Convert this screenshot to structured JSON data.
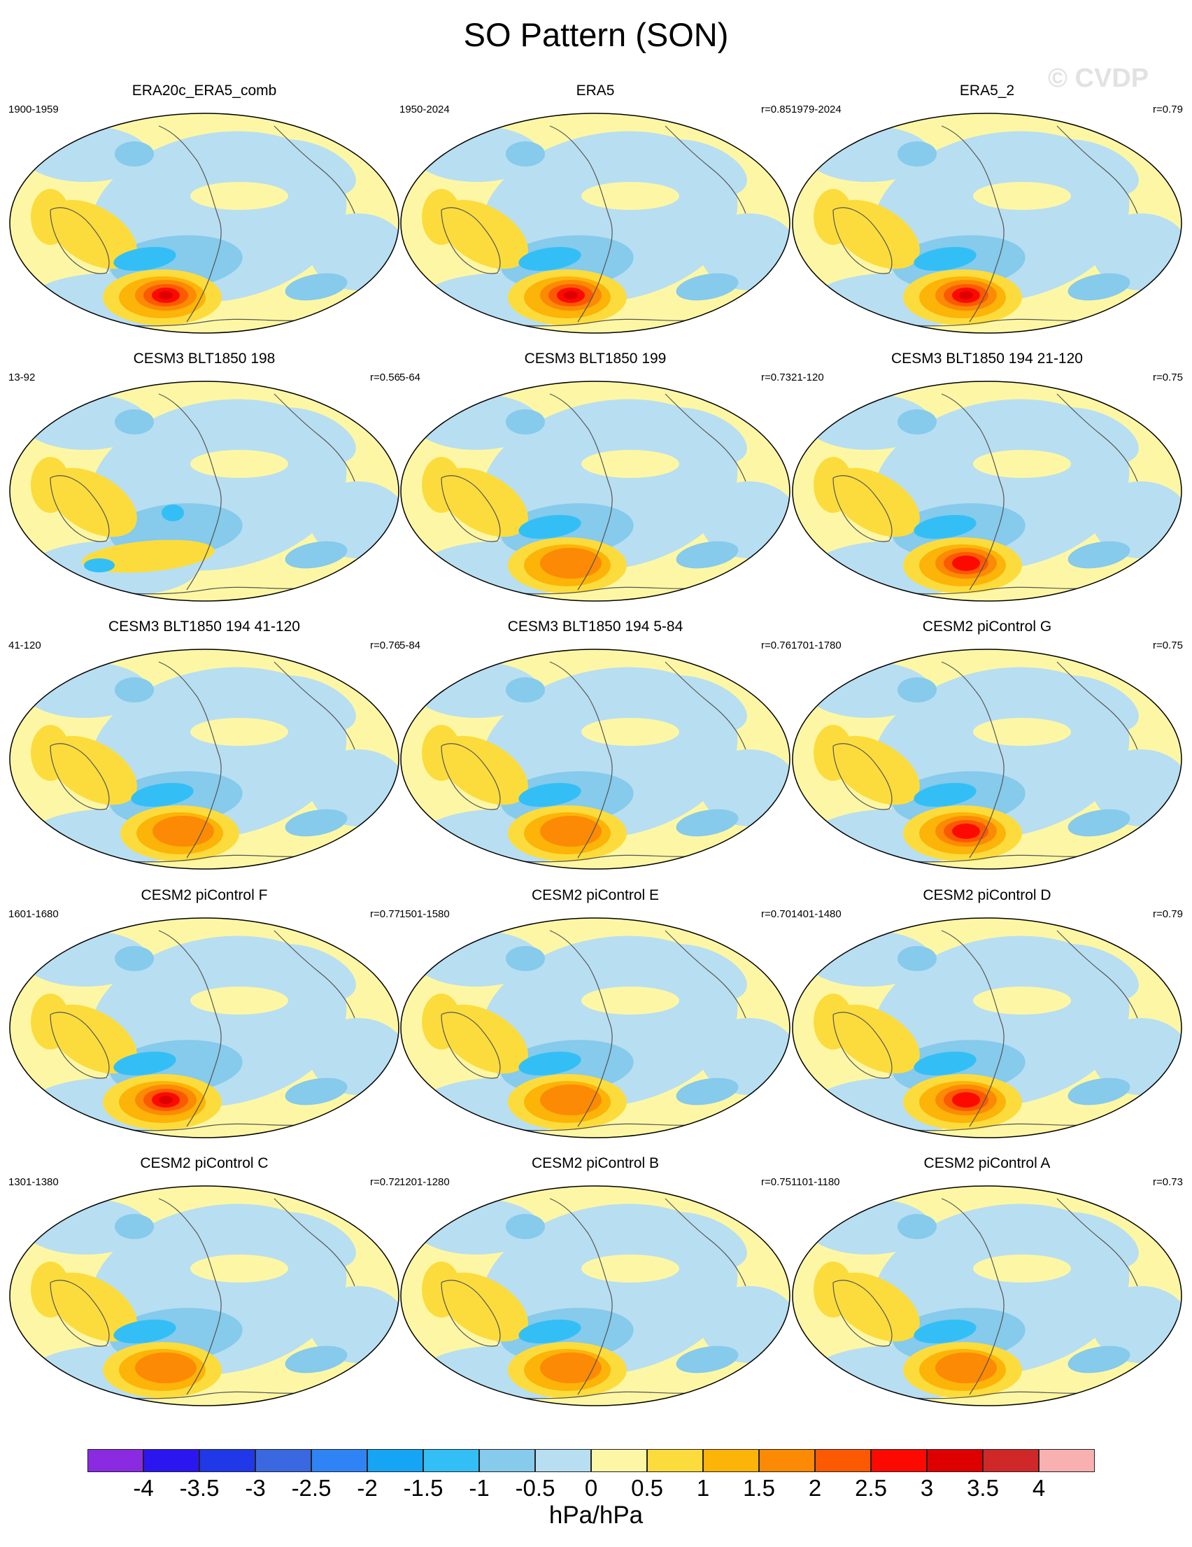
{
  "title": "SO Pattern (SON)",
  "watermark": "© CVDP",
  "panels": [
    {
      "title": "ERA20c_ERA5_comb",
      "years": "1900-1959",
      "r": ""
    },
    {
      "title": "ERA5",
      "years": "1950-2024",
      "r": "r=0.85"
    },
    {
      "title": "ERA5_2",
      "years": "1979-2024",
      "r": "r=0.79"
    },
    {
      "title": "CESM3 BLT1850 198",
      "years": "13-92",
      "r": "r=0.56"
    },
    {
      "title": "CESM3 BLT1850 199",
      "years": "5-64",
      "r": "r=0.73"
    },
    {
      "title": "CESM3 BLT1850 194 21-120",
      "years": "21-120",
      "r": "r=0.75"
    },
    {
      "title": "CESM3 BLT1850 194 41-120",
      "years": "41-120",
      "r": "r=0.76"
    },
    {
      "title": "CESM3 BLT1850 194 5-84",
      "years": "5-84",
      "r": "r=0.76"
    },
    {
      "title": "CESM2 piControl G",
      "years": "1701-1780",
      "r": "r=0.75"
    },
    {
      "title": "CESM2 piControl F",
      "years": "1601-1680",
      "r": "r=0.77"
    },
    {
      "title": "CESM2 piControl E",
      "years": "1501-1580",
      "r": "r=0.70"
    },
    {
      "title": "CESM2 piControl D",
      "years": "1401-1480",
      "r": "r=0.79"
    },
    {
      "title": "CESM2 piControl C",
      "years": "1301-1380",
      "r": "r=0.72"
    },
    {
      "title": "CESM2 piControl B",
      "years": "1201-1280",
      "r": "r=0.75"
    },
    {
      "title": "CESM2 piControl A",
      "years": "1101-1180",
      "r": "r=0.73"
    }
  ],
  "colorbar": {
    "colors": [
      "#8a2be2",
      "#2c16f0",
      "#2038e8",
      "#3a68e0",
      "#2e84f4",
      "#16a4f4",
      "#33bff5",
      "#86caec",
      "#b8def1",
      "#fdf7a5",
      "#fcdc3c",
      "#fcb408",
      "#fc8a04",
      "#fc5a02",
      "#fc0a02",
      "#de0000",
      "#d02828",
      "#f9b0b0"
    ],
    "labels": [
      "-4",
      "-3.5",
      "-3",
      "-2.5",
      "-2",
      "-1.5",
      "-1",
      "-0.5",
      "0",
      "0.5",
      "1",
      "1.5",
      "2",
      "2.5",
      "3",
      "3.5",
      "4"
    ],
    "unit": "hPa/hPa"
  }
}
